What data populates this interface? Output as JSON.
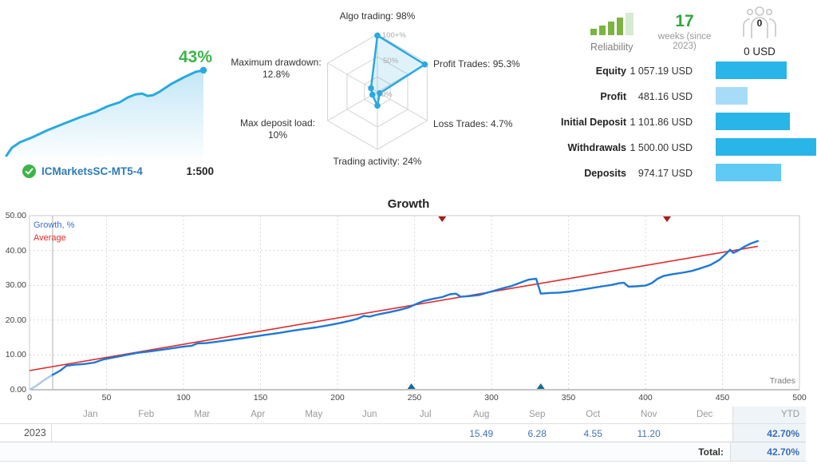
{
  "header": {
    "growth_percent": "43%",
    "account_name": "ICMarketsSC-MT5-4",
    "leverage": "1:500",
    "reliability_label": "Reliability",
    "weeks_value": "17",
    "weeks_label": "weeks (since 2023)",
    "subscribers_count": "0",
    "subscribers_funds": "0 USD"
  },
  "colors": {
    "accent_blue": "#29a9e0",
    "growth_line": "#1e78d7",
    "pale_line": "#aac9e8",
    "average_red": "#e02b2b",
    "green": "#3cb54a",
    "reliability_green": "#7cb342",
    "reliability_pale": "#d7ead2",
    "withdraw_marker": "#a11f1f",
    "deposit_marker": "#176a9c"
  },
  "radar": {
    "metrics": [
      {
        "label": "Algo trading: 98%",
        "value": 98
      },
      {
        "label": "Profit Trades: 95.3%",
        "value": 95.3
      },
      {
        "label": "Loss Trades: 4.7%",
        "value": 4.7
      },
      {
        "label": "Trading activity: 24%",
        "value": 24
      },
      {
        "label": "Max deposit load: 10%",
        "value": 10
      },
      {
        "label": "Maximum drawdown: 12.8%",
        "value": 12.8
      }
    ],
    "ring_labels": [
      "100+%",
      "50%",
      "0%"
    ]
  },
  "finance": {
    "bar_max": 1500,
    "rows": [
      {
        "label": "Equity",
        "value": "1 057.19 USD",
        "amount": 1057.19,
        "color": "#29b5e8"
      },
      {
        "label": "Profit",
        "value": "481.16 USD",
        "amount": 481.16,
        "color": "#a7dcf8"
      },
      {
        "label": "Initial Deposit",
        "value": "1 101.86 USD",
        "amount": 1101.86,
        "color": "#29b5e8"
      },
      {
        "label": "Withdrawals",
        "value": "1 500.00 USD",
        "amount": 1500.0,
        "color": "#29b5e8"
      },
      {
        "label": "Deposits",
        "value": "974.17 USD",
        "amount": 974.17,
        "color": "#5fcbf4"
      }
    ]
  },
  "chart_data": [
    {
      "type": "line",
      "title": "Growth",
      "x_axis_label": "Trades",
      "xlim": [
        0,
        500
      ],
      "ylim": [
        0,
        50
      ],
      "x_ticks": [
        0,
        50,
        100,
        150,
        200,
        250,
        300,
        350,
        400,
        450,
        500
      ],
      "y_ticks": [
        "50.00",
        "40.00",
        "30.00",
        "20.00",
        "10.00",
        "0.00"
      ],
      "grid": "dashed",
      "legend_position": "top-left",
      "legend": [
        {
          "name": "Growth, %",
          "color": "#3a6fce"
        },
        {
          "name": "Average",
          "color": "#e02b2b"
        }
      ],
      "start_line_x": 15,
      "pre_start_points": [
        [
          0,
          0
        ],
        [
          4,
          1.0
        ],
        [
          8,
          2.3
        ],
        [
          12,
          3.5
        ],
        [
          15,
          4.3
        ]
      ],
      "series": [
        {
          "name": "Growth, %",
          "points": [
            [
              15,
              4.3
            ],
            [
              20,
              5.5
            ],
            [
              24,
              6.9
            ],
            [
              30,
              7.2
            ],
            [
              36,
              7.4
            ],
            [
              42,
              7.8
            ],
            [
              48,
              8.7
            ],
            [
              55,
              9.3
            ],
            [
              62,
              9.9
            ],
            [
              70,
              10.6
            ],
            [
              78,
              11.0
            ],
            [
              86,
              11.5
            ],
            [
              94,
              12.0
            ],
            [
              100,
              12.4
            ],
            [
              105,
              12.6
            ],
            [
              109,
              13.3
            ],
            [
              115,
              13.4
            ],
            [
              122,
              13.8
            ],
            [
              130,
              14.3
            ],
            [
              138,
              14.8
            ],
            [
              146,
              15.3
            ],
            [
              154,
              15.8
            ],
            [
              162,
              16.3
            ],
            [
              170,
              16.9
            ],
            [
              178,
              17.4
            ],
            [
              186,
              17.9
            ],
            [
              194,
              18.5
            ],
            [
              202,
              19.2
            ],
            [
              208,
              19.8
            ],
            [
              213,
              20.4
            ],
            [
              217,
              21.2
            ],
            [
              221,
              21.0
            ],
            [
              227,
              21.7
            ],
            [
              234,
              22.3
            ],
            [
              240,
              22.9
            ],
            [
              246,
              23.6
            ],
            [
              252,
              24.8
            ],
            [
              256,
              25.5
            ],
            [
              262,
              26.1
            ],
            [
              268,
              26.6
            ],
            [
              273,
              27.4
            ],
            [
              277,
              27.6
            ],
            [
              280,
              26.7
            ],
            [
              286,
              26.9
            ],
            [
              292,
              27.2
            ],
            [
              299,
              28.1
            ],
            [
              306,
              29.0
            ],
            [
              313,
              29.8
            ],
            [
              319,
              30.8
            ],
            [
              324,
              31.6
            ],
            [
              329,
              31.9
            ],
            [
              332,
              27.6
            ],
            [
              338,
              27.8
            ],
            [
              344,
              27.9
            ],
            [
              351,
              28.2
            ],
            [
              358,
              28.7
            ],
            [
              365,
              29.2
            ],
            [
              372,
              29.7
            ],
            [
              378,
              30.1
            ],
            [
              383,
              30.6
            ],
            [
              386,
              30.7
            ],
            [
              389,
              29.6
            ],
            [
              394,
              29.7
            ],
            [
              400,
              29.9
            ],
            [
              404,
              30.6
            ],
            [
              408,
              31.9
            ],
            [
              412,
              32.7
            ],
            [
              418,
              33.2
            ],
            [
              424,
              33.6
            ],
            [
              430,
              34.1
            ],
            [
              436,
              34.9
            ],
            [
              442,
              35.8
            ],
            [
              448,
              37.3
            ],
            [
              452,
              38.9
            ],
            [
              455,
              40.2
            ],
            [
              457,
              39.3
            ],
            [
              460,
              39.9
            ],
            [
              464,
              41.0
            ],
            [
              468,
              41.9
            ],
            [
              471,
              42.4
            ],
            [
              473,
              42.7
            ]
          ]
        },
        {
          "name": "Average",
          "points": [
            [
              0,
              5.5
            ],
            [
              473,
              41.2
            ]
          ]
        }
      ],
      "markers": {
        "withdrawals_x": [
          268,
          414
        ],
        "deposits_x": [
          248,
          332
        ]
      }
    },
    {
      "type": "line",
      "title": "account growth sparkline",
      "end_label": "43%",
      "xlim": [
        0,
        100
      ],
      "ylim": [
        0,
        45
      ],
      "series": [
        {
          "name": "growth",
          "points": [
            [
              0,
              0
            ],
            [
              2.8,
              4.0
            ],
            [
              6.9,
              6.8
            ],
            [
              13,
              9.2
            ],
            [
              21,
              12.9
            ],
            [
              29.1,
              16.1
            ],
            [
              37.2,
              19.3
            ],
            [
              45.3,
              22.1
            ],
            [
              51.4,
              24.9
            ],
            [
              57.5,
              26.9
            ],
            [
              61.5,
              29.3
            ],
            [
              65.6,
              30.9
            ],
            [
              68.8,
              31.3
            ],
            [
              71.7,
              30.1
            ],
            [
              74.5,
              30.5
            ],
            [
              77.7,
              32.2
            ],
            [
              83.8,
              36.2
            ],
            [
              89.9,
              39.4
            ],
            [
              96,
              42.2
            ],
            [
              100,
              43
            ]
          ]
        }
      ]
    }
  ],
  "monthly_table": {
    "row_label": "2023",
    "months": [
      "Jan",
      "Feb",
      "Mar",
      "Apr",
      "May",
      "Jun",
      "Jul",
      "Aug",
      "Sep",
      "Oct",
      "Nov",
      "Dec"
    ],
    "values": [
      "",
      "",
      "",
      "",
      "",
      "",
      "",
      "15.49",
      "6.28",
      "4.55",
      "11.20",
      ""
    ],
    "ytd_label": "YTD",
    "ytd_value": "42.70%",
    "total_label": "Total:",
    "total_value": "42.70%"
  }
}
